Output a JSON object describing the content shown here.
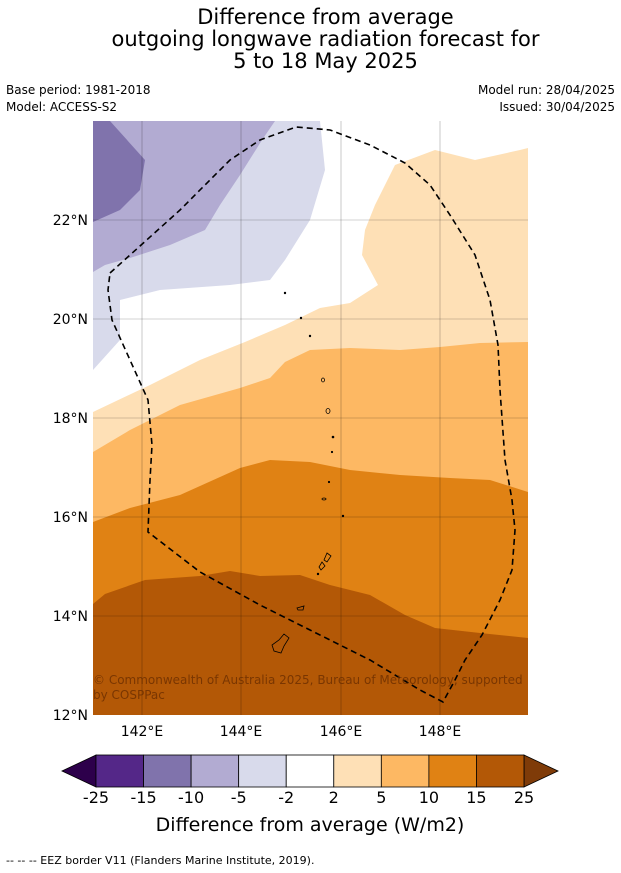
{
  "title": {
    "line1": "Difference from average",
    "line2": "outgoing longwave radiation forecast for",
    "line3": "5 to 18 May 2025"
  },
  "meta": {
    "base_period": "Base period: 1981-2018",
    "model": "Model: ACCESS-S2",
    "model_run": "Model run: 28/04/2025",
    "issued": "Issued: 30/04/2025"
  },
  "map": {
    "lat_labels": [
      "22°N",
      "20°N",
      "18°N",
      "16°N",
      "14°N",
      "12°N"
    ],
    "lon_labels": [
      "142°E",
      "144°E",
      "146°E",
      "148°E"
    ],
    "copyright": "© Commonwealth of Australia 2025, Bureau of Meteorology, supported by COSPPac"
  },
  "colorbar": {
    "ticks": [
      "-25",
      "-15",
      "-10",
      "-5",
      "-2",
      "2",
      "5",
      "10",
      "15",
      "25"
    ],
    "colors": [
      "#542788",
      "#8073ac",
      "#b2abd2",
      "#d8daeb",
      "#ffffff",
      "#fee0b6",
      "#fdb863",
      "#e08214",
      "#b35806"
    ],
    "extend_low": "#2d004b",
    "extend_high": "#7f3b08",
    "label": "Difference from average (W/m2)"
  },
  "legend": {
    "eez": "--  --  -- EEZ border V11 (Flanders Marine Institute, 2019)."
  }
}
